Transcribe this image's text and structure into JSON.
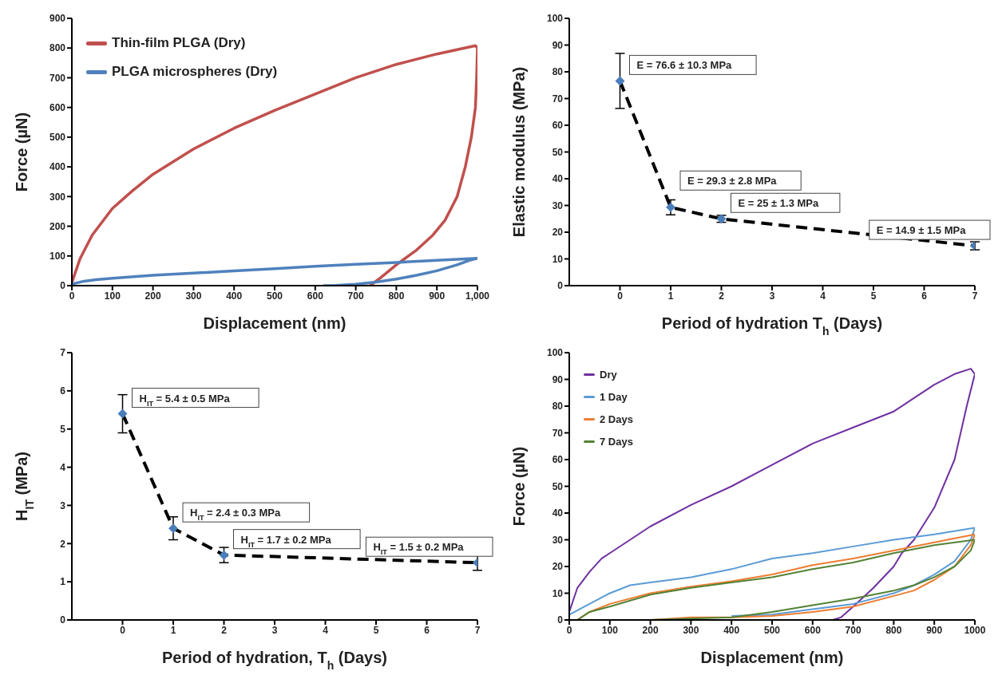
{
  "chart_data": [
    {
      "type": "line",
      "xlabel": "Displacement (nm)",
      "ylabel": "Force (µN)",
      "xlim": [
        0,
        1000
      ],
      "xticks": [
        0,
        100,
        200,
        300,
        400,
        500,
        600,
        700,
        800,
        900,
        {
          "value": 1000,
          "label": "1,000"
        }
      ],
      "ylim": [
        0,
        900
      ],
      "yticks": [
        0,
        100,
        200,
        300,
        400,
        500,
        600,
        700,
        800,
        900
      ],
      "grid": false,
      "legend": "top left",
      "series": [
        {
          "name": "Thin-film PLGA (Dry)",
          "color": "#c0504d",
          "x": [
            0,
            20,
            50,
            100,
            150,
            200,
            300,
            400,
            500,
            600,
            700,
            800,
            900,
            995,
            1000,
            998,
            995,
            985,
            970,
            950,
            920,
            890,
            850,
            800,
            760,
            735
          ],
          "values": [
            10,
            90,
            170,
            260,
            320,
            375,
            460,
            530,
            590,
            645,
            700,
            745,
            780,
            808,
            800,
            700,
            600,
            500,
            400,
            300,
            220,
            170,
            120,
            70,
            25,
            0
          ]
        },
        {
          "name": "PLGA microspheres (Dry)",
          "color": "#4f81bd",
          "x": [
            0,
            30,
            60,
            100,
            200,
            300,
            400,
            500,
            600,
            700,
            800,
            900,
            1000,
            980,
            950,
            900,
            850,
            800,
            750,
            700,
            650,
            620
          ],
          "values": [
            5,
            15,
            20,
            25,
            35,
            42,
            50,
            57,
            65,
            72,
            78,
            85,
            92,
            85,
            70,
            50,
            35,
            22,
            12,
            5,
            1,
            0
          ]
        }
      ]
    },
    {
      "type": "line",
      "xlabel": "Period of hydration T$_{h}$ (Days)",
      "ylabel": "Elastic modulus (MPa)",
      "xlim": [
        -1,
        7
      ],
      "xticks": [
        0,
        1,
        2,
        3,
        4,
        5,
        6,
        7
      ],
      "ylim": [
        0,
        100
      ],
      "yticks": [
        0,
        10,
        20,
        30,
        40,
        50,
        60,
        70,
        80,
        90,
        100
      ],
      "grid": false,
      "marker": "diamond",
      "line_style": "dashed",
      "x": [
        0,
        1,
        2,
        7
      ],
      "series": [
        {
          "color": "#000000",
          "colors": [
            "#4a7ebb",
            "#4a7ebb",
            "#4a7ebb",
            "#4a7ebb"
          ],
          "values": [
            76.6,
            29.3,
            25,
            14.9
          ],
          "errors": [
            10.3,
            2.8,
            1.3,
            1.5
          ]
        }
      ],
      "annotations": [
        {
          "text": "E = 76.6 ± 10.3 MPa",
          "x": 0,
          "y": 76.6
        },
        {
          "text": "E = 29.3 ± 2.8 MPa",
          "x": 1,
          "y": 29.3
        },
        {
          "text": "E = 25 ± 1.3 MPa",
          "x": 2,
          "y": 25
        },
        {
          "text": "E = 14.9 ± 1.5 MPa",
          "x": 7,
          "y": 14.9
        }
      ]
    },
    {
      "type": "line",
      "xlabel": "Period of hydration, T$_{h}$ (Days)",
      "ylabel": "H$_{IT}$ (MPa)",
      "xlim": [
        -1,
        7
      ],
      "xticks": [
        0,
        1,
        2,
        3,
        4,
        5,
        6,
        7
      ],
      "ylim": [
        0,
        7
      ],
      "yticks": [
        0,
        1,
        2,
        3,
        4,
        5,
        6,
        7
      ],
      "grid": false,
      "marker": "diamond",
      "line_style": "dashed",
      "x": [
        0,
        1,
        2,
        7
      ],
      "series": [
        {
          "color": "#000000",
          "colors": [
            "#4a7ebb",
            "#4a7ebb",
            "#4a7ebb",
            "#4a7ebb"
          ],
          "values": [
            5.4,
            2.4,
            1.7,
            1.5
          ],
          "errors": [
            0.5,
            0.3,
            0.2,
            0.2
          ]
        }
      ],
      "annotations": [
        {
          "text": "H$_{IT}$ = 5.4 ± 0.5 MPa",
          "x": 0,
          "y": 5.4
        },
        {
          "text": "H$_{IT}$ = 2.4 ± 0.3 MPa",
          "x": 1,
          "y": 2.4
        },
        {
          "text": "H$_{IT}$ = 1.7 ± 0.2 MPa",
          "x": 2,
          "y": 1.7
        },
        {
          "text": "H$_{IT}$ = 1.5 ± 0.2 MPa",
          "x": 7,
          "y": 1.5
        }
      ]
    },
    {
      "type": "line",
      "xlabel": "Displacement (nm)",
      "ylabel": "Force (µN)",
      "xlim": [
        0,
        1000
      ],
      "xticks": [
        0,
        100,
        200,
        300,
        400,
        500,
        600,
        700,
        800,
        900,
        1000
      ],
      "ylim": [
        0,
        100
      ],
      "yticks": [
        0,
        10,
        20,
        30,
        40,
        50,
        60,
        70,
        80,
        90,
        100
      ],
      "grid": false,
      "legend": "top left",
      "series": [
        {
          "name": "Dry",
          "color": "#7030a0",
          "x": [
            0,
            20,
            50,
            80,
            100,
            150,
            200,
            300,
            400,
            500,
            600,
            700,
            800,
            850,
            900,
            950,
            990,
            1000,
            980,
            950,
            900,
            850,
            820,
            800,
            750,
            700,
            670,
            650
          ],
          "values": [
            3,
            12,
            18,
            23,
            25,
            30,
            35,
            43,
            50,
            58,
            66,
            72,
            78,
            83,
            88,
            92,
            94,
            92,
            80,
            60,
            42,
            30,
            25,
            20,
            12,
            5,
            1,
            0
          ]
        },
        {
          "name": "1 Day",
          "color": "#5b9bd5",
          "x": [
            0,
            50,
            100,
            150,
            200,
            300,
            400,
            500,
            600,
            700,
            800,
            900,
            1000,
            990,
            950,
            900,
            850,
            800,
            700,
            600,
            500,
            400
          ],
          "values": [
            2,
            6,
            10,
            13,
            14,
            16,
            19,
            23,
            25,
            27.5,
            30,
            32,
            34.5,
            30,
            22,
            17,
            13,
            10,
            6,
            4,
            2,
            1.5
          ]
        },
        {
          "name": "2 Days",
          "color": "#ed7d31",
          "x": [
            20,
            50,
            100,
            200,
            300,
            400,
            500,
            600,
            700,
            800,
            900,
            1000,
            990,
            950,
            900,
            850,
            800,
            700,
            600,
            500,
            400,
            300,
            200
          ],
          "values": [
            0,
            3,
            6,
            10,
            12.5,
            14.5,
            17,
            20.5,
            23,
            26,
            29,
            32,
            28,
            20,
            15,
            11,
            9,
            5,
            3,
            1.5,
            1,
            1,
            0
          ]
        },
        {
          "name": "7 Days",
          "color": "#548235",
          "x": [
            20,
            50,
            100,
            200,
            300,
            400,
            500,
            600,
            700,
            800,
            900,
            1000,
            990,
            950,
            900,
            850,
            800,
            700,
            600,
            500,
            400,
            300,
            200
          ],
          "values": [
            0,
            3,
            5,
            9.5,
            12,
            14,
            16,
            19,
            21.5,
            25,
            28,
            30,
            26,
            20,
            16,
            13,
            11,
            8,
            5.5,
            3,
            1,
            0.5,
            0
          ]
        }
      ]
    }
  ]
}
